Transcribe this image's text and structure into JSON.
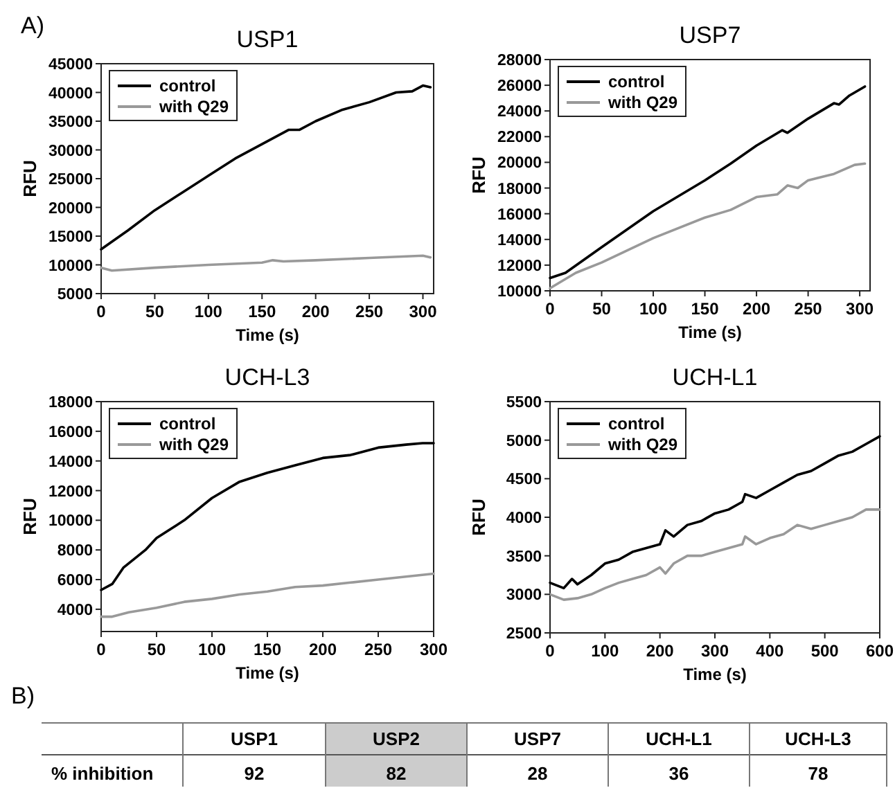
{
  "chart_data": [
    {
      "type": "line",
      "title": "USP1",
      "annotations": [
        "A)"
      ],
      "xlabel": "Time (s)",
      "ylabel": "RFU",
      "xlim": [
        0,
        310
      ],
      "xticks": [
        0,
        50,
        100,
        150,
        200,
        250,
        300
      ],
      "ylim": [
        5000,
        45000
      ],
      "yticks": [
        5000,
        10000,
        15000,
        20000,
        25000,
        30000,
        35000,
        40000,
        45000
      ],
      "legend": "top left",
      "grid": false,
      "series": [
        {
          "name": "control",
          "color": "#000000",
          "x": [
            0,
            25,
            50,
            75,
            100,
            125,
            150,
            175,
            185,
            200,
            225,
            250,
            275,
            290,
            300,
            307
          ],
          "values": [
            12700,
            16000,
            19500,
            22500,
            25500,
            28500,
            31000,
            33500,
            33500,
            35000,
            37000,
            38300,
            40000,
            40200,
            41200,
            40900
          ]
        },
        {
          "name": "with Q29",
          "color": "#999999",
          "x": [
            0,
            10,
            50,
            100,
            150,
            160,
            170,
            200,
            250,
            300,
            307
          ],
          "values": [
            9500,
            9000,
            9500,
            10000,
            10400,
            10800,
            10600,
            10800,
            11200,
            11600,
            11300
          ]
        }
      ]
    },
    {
      "type": "line",
      "title": "USP7",
      "xlabel": "Time (s)",
      "ylabel": "RFU",
      "xlim": [
        0,
        310
      ],
      "xticks": [
        0,
        50,
        100,
        150,
        200,
        250,
        300
      ],
      "ylim": [
        10000,
        28000
      ],
      "yticks": [
        10000,
        12000,
        14000,
        16000,
        18000,
        20000,
        22000,
        24000,
        26000,
        28000
      ],
      "legend": "top left",
      "grid": false,
      "series": [
        {
          "name": "control",
          "color": "#000000",
          "x": [
            0,
            15,
            50,
            100,
            150,
            175,
            200,
            225,
            230,
            250,
            275,
            280,
            290,
            305
          ],
          "values": [
            11000,
            11400,
            13400,
            16200,
            18600,
            19900,
            21300,
            22500,
            22300,
            23400,
            24600,
            24500,
            25200,
            25900
          ]
        },
        {
          "name": "with Q29",
          "color": "#999999",
          "x": [
            0,
            25,
            50,
            100,
            150,
            175,
            200,
            220,
            230,
            240,
            250,
            275,
            295,
            305
          ],
          "values": [
            10200,
            11400,
            12200,
            14100,
            15700,
            16300,
            17300,
            17500,
            18200,
            18000,
            18600,
            19100,
            19800,
            19900
          ]
        }
      ]
    },
    {
      "type": "line",
      "title": "UCH-L3",
      "xlabel": "Time (s)",
      "ylabel": "RFU",
      "xlim": [
        0,
        300
      ],
      "xticks": [
        0,
        50,
        100,
        150,
        200,
        250,
        300
      ],
      "ylim": [
        2500,
        18000
      ],
      "yticks": [
        4000,
        6000,
        8000,
        10000,
        12000,
        14000,
        16000,
        18000
      ],
      "legend": "top left",
      "grid": false,
      "series": [
        {
          "name": "control",
          "color": "#000000",
          "x": [
            0,
            10,
            20,
            40,
            50,
            75,
            100,
            125,
            150,
            175,
            200,
            225,
            250,
            275,
            290,
            300
          ],
          "values": [
            5300,
            5700,
            6800,
            8000,
            8800,
            10000,
            11500,
            12600,
            13200,
            13700,
            14200,
            14400,
            14900,
            15100,
            15200,
            15200
          ]
        },
        {
          "name": "with Q29",
          "color": "#999999",
          "x": [
            0,
            10,
            25,
            50,
            75,
            100,
            125,
            150,
            175,
            200,
            225,
            250,
            275,
            300
          ],
          "values": [
            3500,
            3500,
            3800,
            4100,
            4500,
            4700,
            5000,
            5200,
            5500,
            5600,
            5800,
            6000,
            6200,
            6400
          ]
        }
      ]
    },
    {
      "type": "line",
      "title": "UCH-L1",
      "xlabel": "Time (s)",
      "ylabel": "RFU",
      "xlim": [
        0,
        600
      ],
      "xticks": [
        0,
        100,
        200,
        300,
        400,
        500,
        600
      ],
      "ylim": [
        2500,
        5500
      ],
      "yticks": [
        2500,
        3000,
        3500,
        4000,
        4500,
        5000,
        5500
      ],
      "legend": "top left",
      "grid": false,
      "series": [
        {
          "name": "control",
          "color": "#000000",
          "x": [
            0,
            25,
            40,
            50,
            75,
            100,
            125,
            150,
            175,
            200,
            210,
            225,
            250,
            275,
            300,
            325,
            350,
            355,
            375,
            400,
            425,
            450,
            475,
            500,
            525,
            550,
            575,
            600
          ],
          "values": [
            3150,
            3080,
            3200,
            3130,
            3250,
            3400,
            3450,
            3550,
            3600,
            3650,
            3830,
            3750,
            3900,
            3950,
            4050,
            4100,
            4200,
            4300,
            4250,
            4350,
            4450,
            4550,
            4600,
            4700,
            4800,
            4850,
            4950,
            5050
          ]
        },
        {
          "name": "with Q29",
          "color": "#999999",
          "x": [
            0,
            25,
            50,
            75,
            100,
            125,
            150,
            175,
            200,
            210,
            225,
            250,
            275,
            300,
            325,
            350,
            355,
            375,
            400,
            425,
            450,
            475,
            500,
            525,
            550,
            575,
            600
          ],
          "values": [
            3000,
            2930,
            2950,
            3000,
            3080,
            3150,
            3200,
            3250,
            3350,
            3270,
            3400,
            3500,
            3500,
            3550,
            3600,
            3650,
            3750,
            3650,
            3730,
            3780,
            3900,
            3850,
            3900,
            3950,
            4000,
            4100,
            4100
          ]
        }
      ]
    },
    {
      "type": "other",
      "title": "B)",
      "ylabel": "% inhibition",
      "categories": [
        "USP1",
        "USP2",
        "USP7",
        "UCH-L1",
        "UCH-L3"
      ],
      "values": [
        92,
        82,
        28,
        36,
        78
      ],
      "colors": [
        "#ffffff",
        "#cccccc",
        "#ffffff",
        "#ffffff",
        "#ffffff"
      ],
      "data_labels": true
    }
  ]
}
